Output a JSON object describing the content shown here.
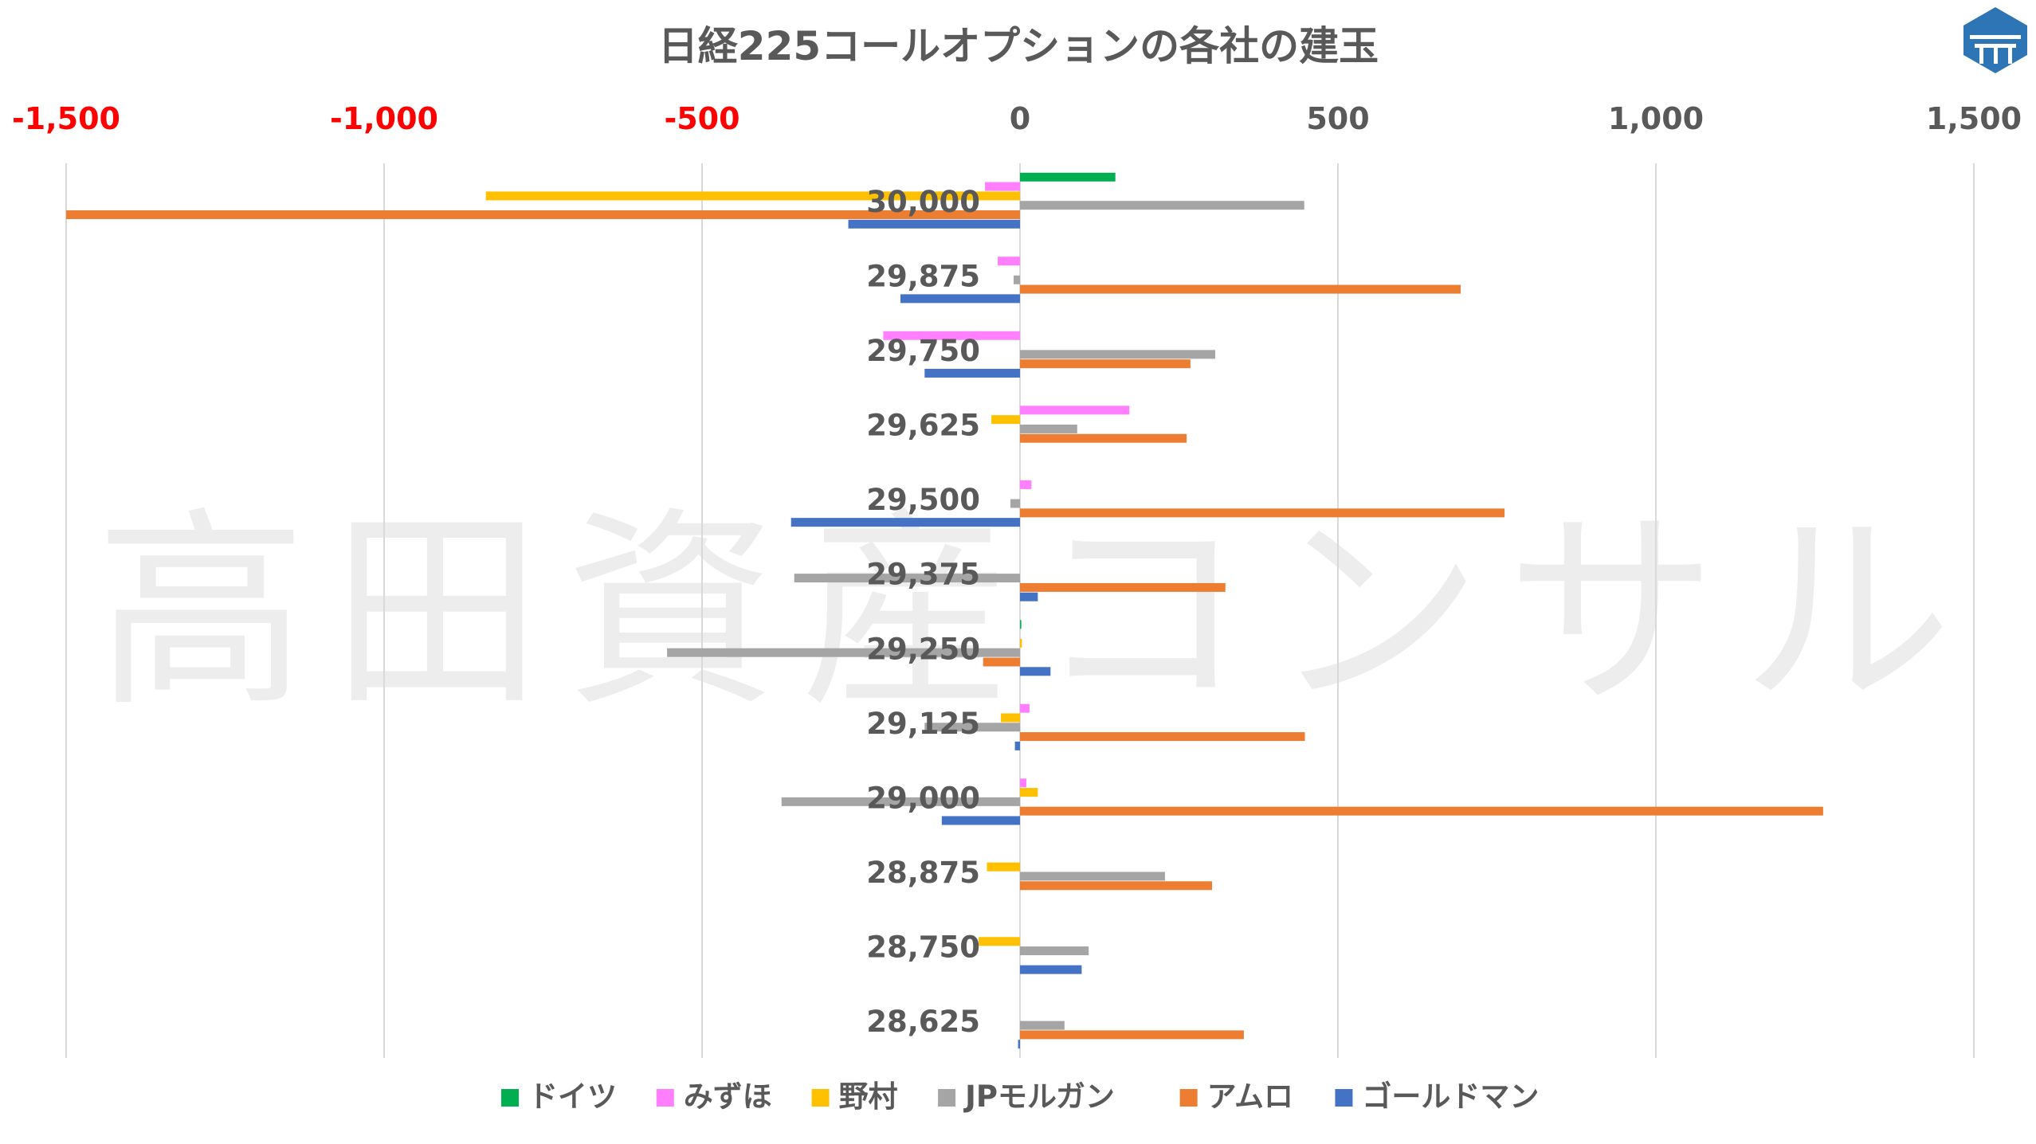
{
  "chart_data": {
    "type": "bar",
    "orientation": "horizontal",
    "title": "日経225コールオプションの各社の建玉",
    "watermark": "高田資産コンサル",
    "xlim": [
      -1500,
      1500
    ],
    "x_ticks": [
      {
        "value": -1500,
        "label": "-1,500",
        "color": "#FF0000"
      },
      {
        "value": -1000,
        "label": "-1,000",
        "color": "#FF0000"
      },
      {
        "value": -500,
        "label": "-500",
        "color": "#FF0000"
      },
      {
        "value": 0,
        "label": "0",
        "color": "#595959"
      },
      {
        "value": 500,
        "label": "500",
        "color": "#595959"
      },
      {
        "value": 1000,
        "label": "1,000",
        "color": "#595959"
      },
      {
        "value": 1500,
        "label": "1,500",
        "color": "#595959"
      }
    ],
    "grid": true,
    "legend_position": "bottom",
    "categories": [
      "30,000",
      "29,875",
      "29,750",
      "29,625",
      "29,500",
      "29,375",
      "29,250",
      "29,125",
      "29,000",
      "28,875",
      "28,750",
      "28,625"
    ],
    "series": [
      {
        "name": "ドイツ",
        "color": "#00B050",
        "values": [
          150,
          0,
          0,
          0,
          0,
          0,
          2,
          0,
          0,
          0,
          0,
          0
        ]
      },
      {
        "name": "みずほ",
        "color": "#FF7FFF",
        "values": [
          -55,
          -35,
          -215,
          172,
          18,
          0,
          0,
          15,
          10,
          0,
          0,
          0
        ]
      },
      {
        "name": "野村",
        "color": "#FFC000",
        "values": [
          -840,
          0,
          0,
          -45,
          0,
          0,
          3,
          -30,
          28,
          -52,
          -65,
          0
        ]
      },
      {
        "name": "JPモルガン",
        "color": "#A5A5A5",
        "values": [
          447,
          -10,
          307,
          90,
          -15,
          -355,
          -555,
          -150,
          -375,
          228,
          108,
          70
        ]
      },
      {
        "name": "アムロ",
        "color": "#ED7D31",
        "values": [
          -1500,
          693,
          268,
          262,
          762,
          323,
          -58,
          448,
          1263,
          302,
          0,
          352
        ]
      },
      {
        "name": "ゴールドマン",
        "color": "#4472C4",
        "values": [
          -270,
          -188,
          -150,
          0,
          -360,
          28,
          48,
          -8,
          -123,
          0,
          97,
          -3
        ]
      }
    ]
  }
}
